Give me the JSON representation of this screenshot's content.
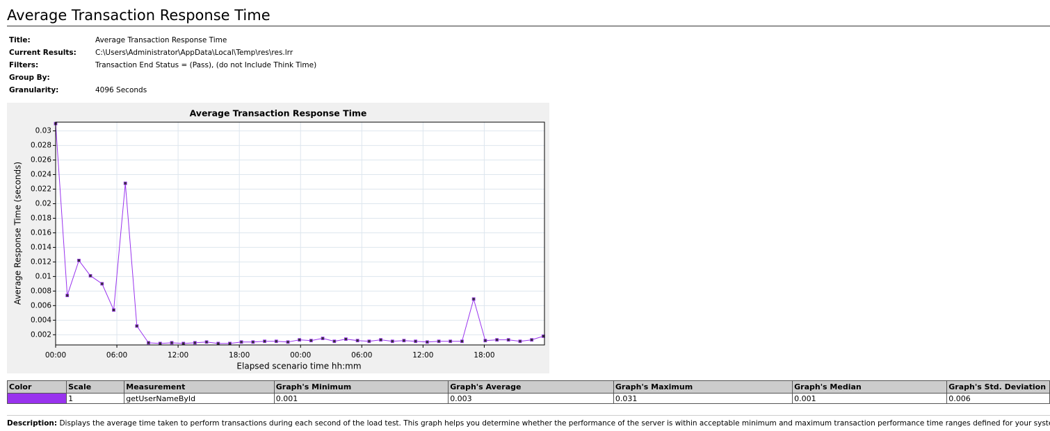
{
  "header": {
    "title": "Average Transaction Response Time"
  },
  "info": {
    "rows": [
      [
        "Title:",
        "Average Transaction Response Time"
      ],
      [
        "Current Results:",
        "C:\\Users\\Administrator\\AppData\\Local\\Temp\\res\\res.lrr"
      ],
      [
        "Filters:",
        "Transaction End Status = (Pass), (do not Include Think Time)"
      ],
      [
        "Group By:"
      ],
      [
        "Granularity:",
        "4096 Seconds"
      ]
    ]
  },
  "chart_data": {
    "type": "line",
    "title": "Average Transaction Response Time",
    "x_label": "Elapsed scenario time hh:mm",
    "y_label": "Average Response Time (seconds)",
    "x": [
      0,
      1.14,
      2.28,
      3.41,
      4.55,
      5.69,
      6.83,
      7.96,
      9.1,
      10.24,
      11.38,
      12.52,
      13.65,
      14.79,
      15.93,
      17.07,
      18.2,
      19.34,
      20.48,
      21.62,
      22.76,
      23.89,
      25.03,
      26.17,
      27.31,
      28.44,
      29.58,
      30.72,
      31.86,
      33,
      34.13,
      35.27,
      36.41,
      37.55,
      38.68,
      39.82,
      40.96,
      42.1,
      43.24,
      44.37,
      45.51,
      46.65,
      47.79
    ],
    "values": [
      0.031,
      0.0074,
      0.0122,
      0.0101,
      0.009,
      0.0054,
      0.0228,
      0.0032,
      0.0009,
      0.0008,
      0.0009,
      0.0008,
      0.0009,
      0.001,
      0.0008,
      0.0008,
      0.001,
      0.001,
      0.0011,
      0.0011,
      0.001,
      0.0013,
      0.0012,
      0.0015,
      0.0011,
      0.0014,
      0.0012,
      0.0011,
      0.0013,
      0.0011,
      0.0012,
      0.0011,
      0.001,
      0.0011,
      0.0011,
      0.0011,
      0.0069,
      0.0012,
      0.0013,
      0.0013,
      0.0011,
      0.0013,
      0.0018
    ],
    "color": "#9933ee",
    "xlim": [
      0,
      47.9
    ],
    "xticks": [
      {
        "value": 0,
        "label": "00:00"
      },
      {
        "value": 6,
        "label": "06:00"
      },
      {
        "value": 12,
        "label": "12:00"
      },
      {
        "value": 18,
        "label": "18:00"
      },
      {
        "value": 24,
        "label": "00:00"
      },
      {
        "value": 30,
        "label": "06:00"
      },
      {
        "value": 36,
        "label": "12:00"
      },
      {
        "value": 42,
        "label": "18:00"
      }
    ],
    "ylim": [
      0.0006,
      0.0312
    ],
    "yticks": [
      0.002,
      0.004,
      0.006,
      0.008,
      0.01,
      0.012,
      0.014,
      0.016,
      0.018,
      0.02,
      0.022,
      0.024,
      0.026,
      0.028,
      0.03
    ],
    "grid": true
  },
  "table": {
    "headers": [
      "Color",
      "Scale",
      "Measurement",
      "Graph's Minimum",
      "Graph's Average",
      "Graph's Maximum",
      "Graph's Median",
      "Graph's Std. Deviation"
    ],
    "rows": [
      [
        "1",
        "getUserNameById",
        "0.001",
        "0.003",
        "0.031",
        "0.001",
        "0.006"
      ]
    ]
  },
  "description": {
    "label": "Description:",
    "text": "Displays the average time taken to perform transactions during each second of the load test. This graph helps you determine whether the performance of the server is within acceptable minimum and maximum transaction performance time ranges defined for your system."
  }
}
